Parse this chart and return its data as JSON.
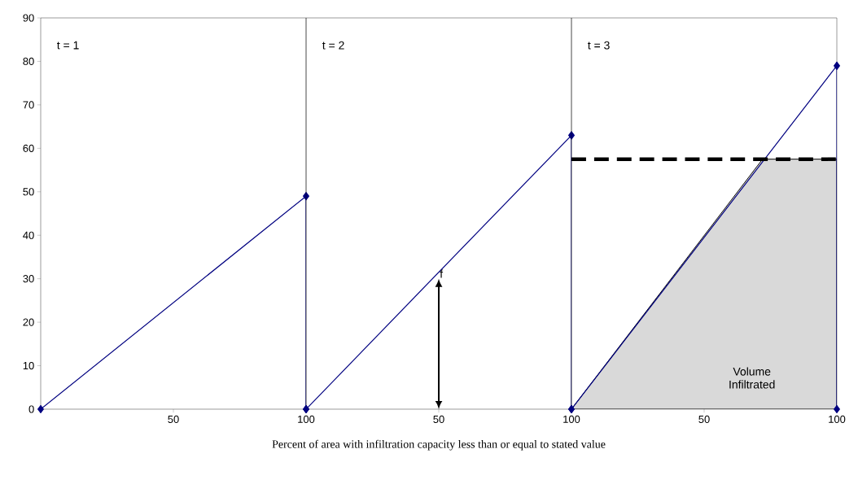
{
  "chart_data": [
    {
      "type": "line",
      "xlim": [
        0,
        100
      ],
      "ylim": [
        0,
        90
      ],
      "xticks": [
        50,
        100
      ],
      "yticks": [
        0,
        10,
        20,
        30,
        40,
        50,
        60,
        70,
        80,
        90
      ],
      "series": [
        {
          "color": "#000080",
          "marker": "diamond",
          "x": [
            0,
            100,
            100
          ],
          "values": [
            0,
            49,
            0
          ]
        }
      ],
      "annotations": [
        "t = 1"
      ]
    },
    {
      "type": "line",
      "xlabel": "Percent of area with infiltration capacity less than or equal to stated value",
      "xlim": [
        0,
        100
      ],
      "ylim": [
        0,
        90
      ],
      "xticks": [
        50,
        100
      ],
      "tick_labels": "x",
      "series": [
        {
          "color": "#000080",
          "marker": "diamond",
          "x": [
            0,
            100,
            100
          ],
          "values": [
            0,
            63,
            0
          ]
        }
      ],
      "annotations": [
        "t = 2",
        {
          "text": "f",
          "x": 50,
          "y": 30
        }
      ]
    },
    {
      "type": "line",
      "xlim": [
        0,
        100
      ],
      "ylim": [
        0,
        90
      ],
      "xticks": [
        50,
        100
      ],
      "tick_labels": "x",
      "series": [
        {
          "type": "area",
          "color": "#d9d9d9",
          "x": [
            0,
            72,
            100
          ],
          "values": [
            0,
            57.5,
            57.5
          ]
        },
        {
          "color": "#000080",
          "marker": "diamond",
          "x": [
            0,
            100,
            100
          ],
          "values": [
            0,
            79,
            0
          ]
        },
        {
          "color": "#000000",
          "line_style": "dashed",
          "x": [
            0,
            100
          ],
          "values": [
            57.5,
            57.5
          ]
        }
      ],
      "annotations": [
        "t = 3",
        "Volume Infiltrated"
      ]
    }
  ]
}
